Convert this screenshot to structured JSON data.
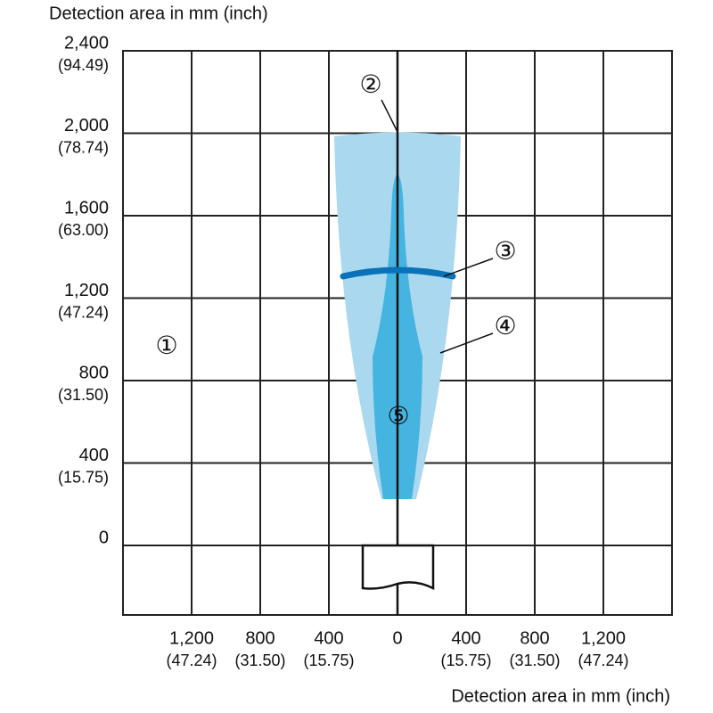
{
  "y_axis": {
    "title": "Detection area in mm (inch)",
    "ticks": [
      {
        "label": "2,400",
        "sub": "(94.49)"
      },
      {
        "label": "2,000",
        "sub": "(78.74)"
      },
      {
        "label": "1,600",
        "sub": "(63.00)"
      },
      {
        "label": "1,200",
        "sub": "(47.24)"
      },
      {
        "label": "800",
        "sub": "(31.50)"
      },
      {
        "label": "400",
        "sub": "(15.75)"
      },
      {
        "label": "0"
      }
    ]
  },
  "x_axis": {
    "title": "Detection area in mm (inch)",
    "ticks": [
      {
        "label": "1,200",
        "sub": "(47.24)"
      },
      {
        "label": "800",
        "sub": "(31.50)"
      },
      {
        "label": "400",
        "sub": "(15.75)"
      },
      {
        "label": "0"
      },
      {
        "label": "400",
        "sub": "(15.75)"
      },
      {
        "label": "800",
        "sub": "(31.50)"
      },
      {
        "label": "1,200",
        "sub": "(47.24)"
      }
    ]
  },
  "callouts": [
    "①",
    "②",
    "③",
    "④",
    "⑤"
  ]
}
